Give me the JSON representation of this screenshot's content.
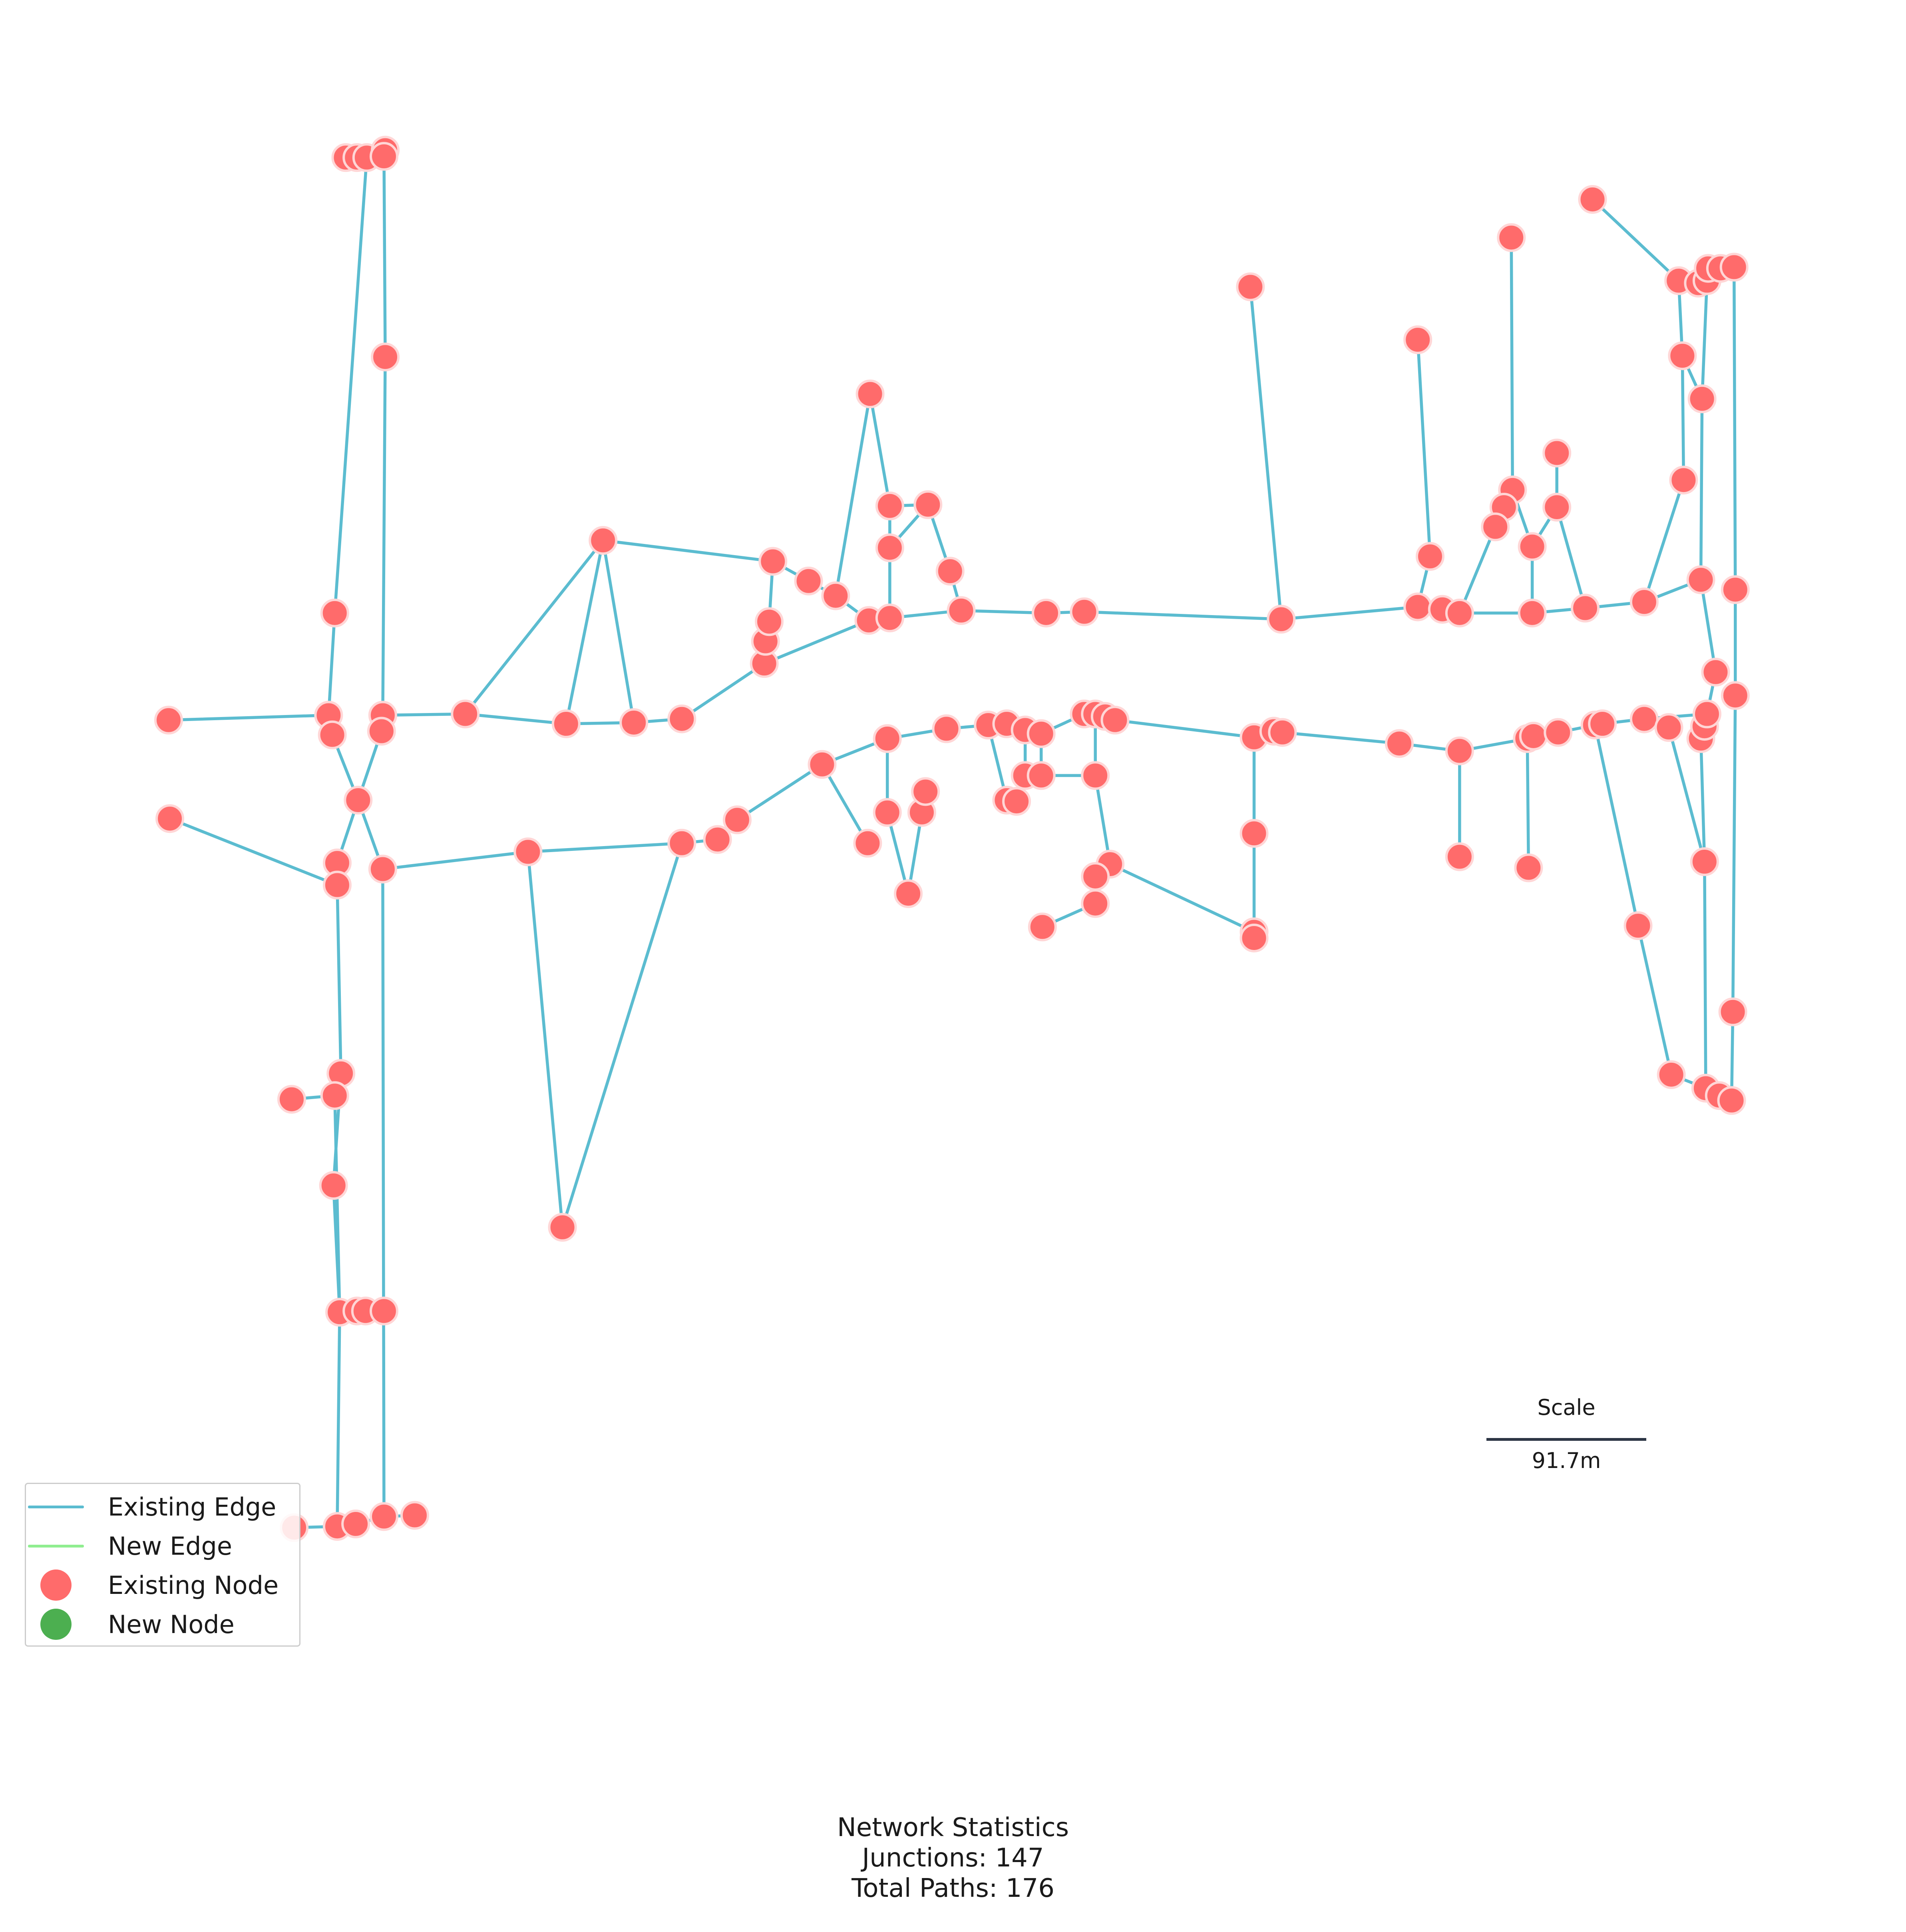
{
  "legend": {
    "existing_edge": "Existing Edge",
    "new_edge": "New Edge",
    "existing_node": "Existing Node",
    "new_node": "New Node"
  },
  "scale": {
    "title": "Scale",
    "value": "91.7m"
  },
  "stats": {
    "title": "Network Statistics",
    "junctions": "Junctions: 147",
    "paths": "Total Paths: 176"
  },
  "colors": {
    "existing_edge": "#5bbcd0",
    "new_edge": "#90ee90",
    "existing_node": "#ff6b6b",
    "new_node": "#4caf50",
    "scale_bar": "#2d3645"
  }
}
